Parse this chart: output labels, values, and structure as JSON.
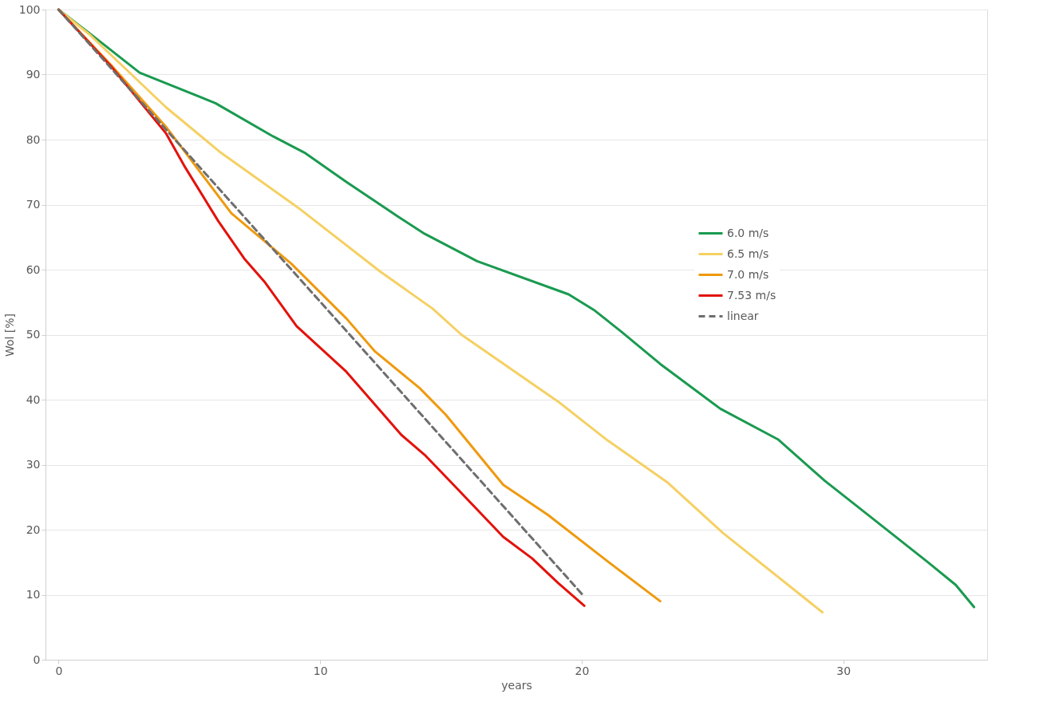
{
  "chart_data": {
    "type": "line",
    "xlabel": "years",
    "ylabel": "Wol [%]",
    "xlim": [
      -0.5,
      35.5
    ],
    "xticks": [
      0,
      10,
      20,
      30
    ],
    "ylim": [
      0,
      100
    ],
    "yticks": [
      0,
      10,
      20,
      30,
      40,
      50,
      60,
      70,
      80,
      90,
      100
    ],
    "grid": "y",
    "legend": "top right",
    "line_style": "solid",
    "series": [
      {
        "name": "6.0 m/s",
        "color": "#1a9a50",
        "x": [
          0,
          1.2,
          3.1,
          6,
          8.2,
          9.4,
          11,
          13,
          14,
          16,
          19.5,
          20.5,
          21.5,
          23,
          25.3,
          27.5,
          29.3,
          30.5,
          33.2,
          34.3,
          35.0
        ],
        "values": [
          100,
          96.3,
          90.3,
          85.6,
          80.5,
          78,
          73.5,
          68.1,
          65.5,
          61.3,
          56.2,
          53.7,
          50.5,
          45.5,
          38.6,
          33.9,
          27.5,
          23.7,
          15.1,
          11.5,
          8.1
        ]
      },
      {
        "name": "6.5 m/s",
        "color": "#f5d063",
        "x": [
          0,
          1.2,
          4.1,
          6.2,
          9.2,
          12.3,
          14.3,
          15.4,
          19.1,
          21,
          23.3,
          25.4,
          29.2
        ],
        "values": [
          100,
          96.1,
          85,
          78,
          69.4,
          59.7,
          54,
          50,
          39.7,
          33.7,
          27.2,
          19.5,
          7.3
        ]
      },
      {
        "name": "7.0 m/s",
        "color": "#ef9a0f",
        "x": [
          0,
          2,
          4.1,
          6.6,
          8.9,
          11,
          12.1,
          13.8,
          14.8,
          17,
          18.7,
          21,
          23
        ],
        "values": [
          100,
          91.5,
          82,
          68.7,
          60.9,
          52.5,
          47.4,
          41.8,
          37.7,
          26.9,
          22.3,
          15.1,
          9
        ]
      },
      {
        "name": "7.53 m/s",
        "color": "#e3120b",
        "x": [
          0,
          2,
          4.1,
          4.8,
          6.1,
          7.1,
          7.9,
          9.1,
          11,
          13.1,
          14,
          15.1,
          17,
          18.1,
          19.1,
          20.1
        ],
        "values": [
          100,
          91.3,
          81,
          76,
          67.5,
          61.7,
          58,
          51.3,
          44.3,
          34.6,
          31.5,
          26.9,
          18.9,
          15.6,
          11.8,
          8.3
        ]
      },
      {
        "name": "linear",
        "color": "#6e6e6e",
        "line_style": "dashed",
        "x": [
          0,
          20.1
        ],
        "values": [
          100,
          9.7
        ]
      }
    ]
  }
}
